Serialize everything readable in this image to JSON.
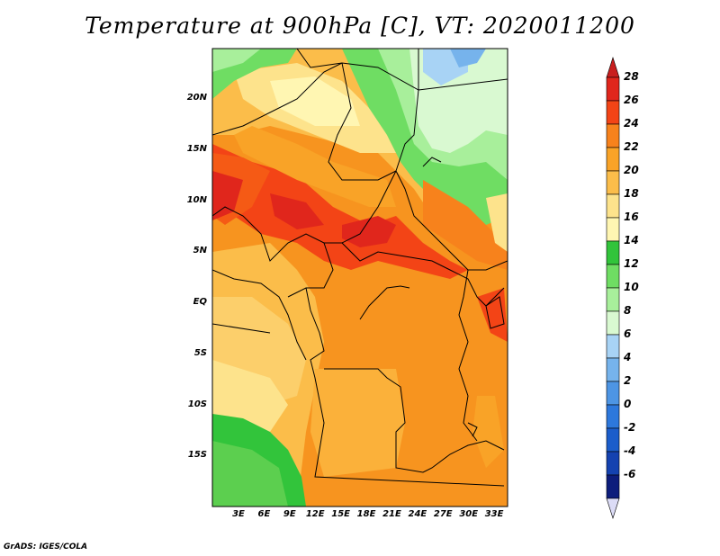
{
  "title": "Temperature at 900hPa [C], VT: 2020011200",
  "credit": "GrADS: IGES/COLA",
  "lat_axis": {
    "labels": [
      {
        "text": "20N",
        "value": 20
      },
      {
        "text": "15N",
        "value": 15
      },
      {
        "text": "10N",
        "value": 10
      },
      {
        "text": "5N",
        "value": 5
      },
      {
        "text": "EQ",
        "value": 0
      },
      {
        "text": "5S",
        "value": -5
      },
      {
        "text": "10S",
        "value": -10
      },
      {
        "text": "15S",
        "value": -15
      }
    ]
  },
  "lon_axis": {
    "labels": [
      {
        "text": "3E",
        "value": 3
      },
      {
        "text": "6E",
        "value": 6
      },
      {
        "text": "9E",
        "value": 9
      },
      {
        "text": "12E",
        "value": 12
      },
      {
        "text": "15E",
        "value": 15
      },
      {
        "text": "18E",
        "value": 18
      },
      {
        "text": "21E",
        "value": 21
      },
      {
        "text": "24E",
        "value": 24
      },
      {
        "text": "27E",
        "value": 27
      },
      {
        "text": "30E",
        "value": 30
      },
      {
        "text": "33E",
        "value": 33
      }
    ]
  },
  "colorbar": {
    "levels": [
      {
        "label": "28",
        "color": "#e0261c"
      },
      {
        "label": "26",
        "color": "#f34416"
      },
      {
        "label": "24",
        "color": "#f7821c"
      },
      {
        "label": "22",
        "color": "#f9a327"
      },
      {
        "label": "20",
        "color": "#fbbd4a"
      },
      {
        "label": "18",
        "color": "#fde38c"
      },
      {
        "label": "16",
        "color": "#fff6b2"
      },
      {
        "label": "14",
        "color": "#32c43b"
      },
      {
        "label": "12",
        "color": "#6fdd63"
      },
      {
        "label": "10",
        "color": "#a8ef9b"
      },
      {
        "label": "8",
        "color": "#d9f9d1"
      },
      {
        "label": "6",
        "color": "#a8d3f5"
      },
      {
        "label": "4",
        "color": "#76b3ec"
      },
      {
        "label": "2",
        "color": "#4d95e4"
      },
      {
        "label": "0",
        "color": "#2d78dc"
      },
      {
        "label": "-2",
        "color": "#1b5dcb"
      },
      {
        "label": "-4",
        "color": "#1442b0"
      },
      {
        "label": "-6",
        "color": "#0d1d7c"
      }
    ],
    "top_color": "#c81e1e",
    "bottom_color": "#dcdcf6"
  }
}
